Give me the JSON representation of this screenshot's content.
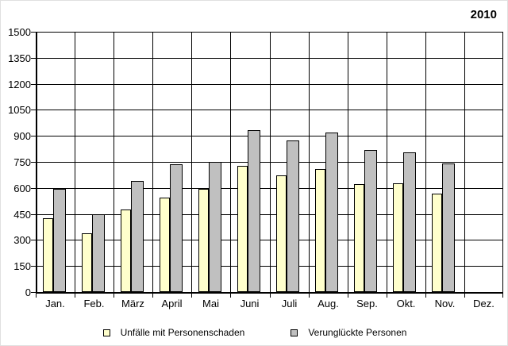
{
  "title": "2010",
  "legend": {
    "items": [
      {
        "label": "Unfälle mit Personenschaden",
        "swatch_color": "#FFFFCC"
      },
      {
        "label": "Verunglückte Personen",
        "swatch_color": "#C0C0C0"
      }
    ]
  },
  "chart_data": {
    "type": "bar",
    "title": "2010",
    "categories": [
      "Jan.",
      "Feb.",
      "März",
      "April",
      "Mai",
      "Juni",
      "Juli",
      "Aug.",
      "Sep.",
      "Okt.",
      "Nov.",
      "Dez."
    ],
    "series": [
      {
        "name": "Unfälle mit Personenschaden",
        "color": "#FFFFCC",
        "values": [
          425,
          340,
          475,
          545,
          595,
          725,
          670,
          710,
          620,
          625,
          565,
          null
        ]
      },
      {
        "name": "Verunglückte Personen",
        "color": "#C0C0C0",
        "values": [
          595,
          450,
          640,
          735,
          750,
          935,
          875,
          920,
          820,
          805,
          740,
          null
        ]
      }
    ],
    "xlabel": "",
    "ylabel": "",
    "ylim": [
      0,
      1500
    ],
    "ytick_step": 150,
    "ytick_labels": [
      "0",
      "150",
      "300",
      "450",
      "600",
      "750",
      "900",
      "1050",
      "1200",
      "1350",
      "1500"
    ],
    "grid": "horizontal gridlines + vertical category separators",
    "bar_border_color": "#000000",
    "legend_position": "bottom"
  }
}
